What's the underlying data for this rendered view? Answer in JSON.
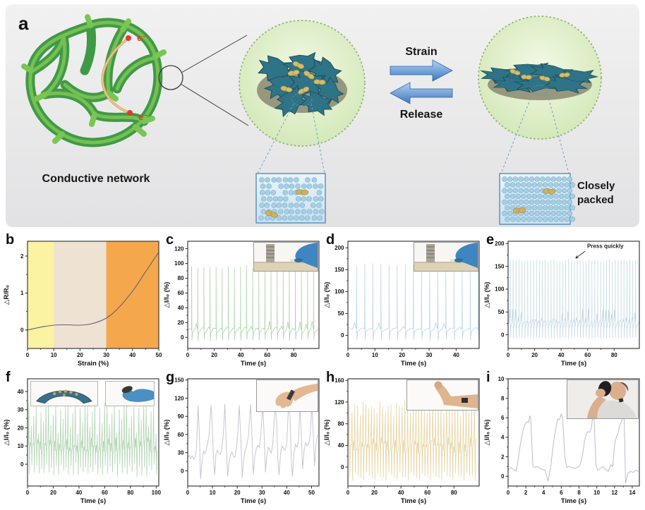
{
  "panel_a": {
    "label": "a",
    "conductive_network_label": "Conductive network",
    "electron_label": "e⁻",
    "strain_label": "Strain",
    "release_label": "Release",
    "closely_packed": [
      "Closely",
      "packed"
    ],
    "colors": {
      "network_green": "#4aa34e",
      "flake_teal": "#2e7386",
      "particle_gold": "#d6bd66",
      "electron_red": "#e23b28",
      "arrow_blue": "#3c79c0",
      "circle_fill": "#e3f1cd",
      "background_gray": "#ececec"
    }
  },
  "chart_data": [
    {
      "id": "b",
      "panel_label": "b",
      "type": "line",
      "xlabel": "Strain (%)",
      "ylabel": "△R/R₀",
      "xlim": [
        0,
        50
      ],
      "ylim": [
        -0.5,
        2.4
      ],
      "xticks": [
        0,
        10,
        20,
        30,
        40,
        50
      ],
      "yticks": [
        0,
        1,
        2
      ],
      "line_color": "#62627a",
      "stroke_width": 1.1,
      "bands": [
        {
          "from": 0,
          "to": 10,
          "color": "#fbf2a2"
        },
        {
          "from": 10,
          "to": 30,
          "color": "#eee2d2"
        },
        {
          "from": 30,
          "to": 50,
          "color": "#f5a74c"
        }
      ],
      "series": [
        {
          "name": "resistance change vs strain",
          "points": [
            [
              0,
              0
            ],
            [
              2,
              0.03
            ],
            [
              4,
              0.06
            ],
            [
              6,
              0.09
            ],
            [
              8,
              0.11
            ],
            [
              10,
              0.13
            ],
            [
              12,
              0.14
            ],
            [
              14,
              0.14
            ],
            [
              16,
              0.14
            ],
            [
              18,
              0.13
            ],
            [
              20,
              0.13
            ],
            [
              22,
              0.14
            ],
            [
              24,
              0.16
            ],
            [
              26,
              0.2
            ],
            [
              28,
              0.25
            ],
            [
              30,
              0.32
            ],
            [
              32,
              0.42
            ],
            [
              34,
              0.55
            ],
            [
              36,
              0.7
            ],
            [
              38,
              0.87
            ],
            [
              40,
              1.05
            ],
            [
              42,
              1.25
            ],
            [
              44,
              1.47
            ],
            [
              46,
              1.68
            ],
            [
              48,
              1.9
            ],
            [
              50,
              2.1
            ]
          ]
        }
      ]
    },
    {
      "id": "c",
      "panel_label": "c",
      "type": "line",
      "xlabel": "Time (s)",
      "ylabel": "△I/I₀ (%)",
      "xlim": [
        0,
        99
      ],
      "ylim": [
        -15,
        130
      ],
      "xticks": [
        0,
        20,
        40,
        60,
        80
      ],
      "yticks": [
        0,
        20,
        40,
        60,
        80,
        100,
        120
      ],
      "line_color": "#abd2ab",
      "stroke_width": 0.8,
      "series": [
        {
          "name": "cyclic finger pressing",
          "pattern": {
            "kind": "spikes",
            "t0": 3.0,
            "period": 4.6,
            "count": 21,
            "peak": 97,
            "base": 12,
            "low": -5,
            "xend": 99,
            "seed": 3
          }
        }
      ],
      "inset": "finger-press-photo"
    },
    {
      "id": "d",
      "panel_label": "d",
      "type": "line",
      "xlabel": "Time (s)",
      "ylabel": "△I/I₀ (%)",
      "xlim": [
        0,
        48.5
      ],
      "ylim": [
        -30,
        215
      ],
      "xticks": [
        0,
        10,
        20,
        30,
        40
      ],
      "yticks": [
        0,
        50,
        100,
        150,
        200
      ],
      "line_color": "#b9d4e6",
      "stroke_width": 0.8,
      "series": [
        {
          "name": "cyclic finger pressing (larger force)",
          "pattern": {
            "kind": "spikes",
            "t0": 3.2,
            "period": 3.0,
            "count": 16,
            "peak": 165,
            "base": 16,
            "low": -12,
            "xend": 48.5,
            "seed": 5
          }
        }
      ],
      "inset": "finger-press-photo"
    },
    {
      "id": "e",
      "panel_label": "e",
      "type": "line",
      "xlabel": "Time (s)",
      "ylabel": "△I/I₀ (%)",
      "xlim": [
        0,
        99
      ],
      "ylim": [
        -30,
        205
      ],
      "xticks": [
        0,
        20,
        40,
        60,
        80
      ],
      "yticks": [
        0,
        50,
        100,
        150,
        200
      ],
      "line_color": "#bfd8e2",
      "stroke_width": 0.8,
      "annotation": {
        "text": "Press quickly",
        "text_at": [
          60,
          190
        ],
        "arrow_from": [
          58,
          183
        ],
        "arrow_to": [
          51,
          168
        ]
      },
      "series": [
        {
          "name": "quick pressing",
          "pattern": {
            "kind": "spikes",
            "t0": 1.6,
            "period": 2.2,
            "count": 44,
            "peak": 166,
            "base": 30,
            "low": -8,
            "xend": 99,
            "seed": 9
          }
        }
      ]
    },
    {
      "id": "f",
      "panel_label": "f",
      "type": "line",
      "xlabel": "Time (s)",
      "ylabel": "△I/I₀ (%)",
      "xlim": [
        0,
        102
      ],
      "ylim": [
        -12,
        47
      ],
      "xticks": [
        0,
        20,
        40,
        60,
        80,
        100
      ],
      "yticks": [
        0,
        10,
        20,
        30,
        40
      ],
      "line_color": "#b2d4b2",
      "stroke_width": 0.8,
      "series": [
        {
          "name": "cyclic bending",
          "pattern": {
            "kind": "osc",
            "t0": 0.6,
            "period": 1.9,
            "count": 53,
            "peaks": [
              34,
              21,
              28,
              33,
              17,
              30,
              24,
              34
            ],
            "mins": [
              -7,
              -3,
              -6,
              -2
            ],
            "mid": 9,
            "seed": 11
          }
        }
      ],
      "inset": "bent-sample-and-glove-photos"
    },
    {
      "id": "g",
      "panel_label": "g",
      "type": "line",
      "xlabel": "Time (s)",
      "ylabel": "△I/I₀ (%)",
      "xlim": [
        0,
        53
      ],
      "ylim": [
        -25,
        152
      ],
      "xticks": [
        0,
        10,
        20,
        30,
        40,
        50
      ],
      "yticks": [
        0,
        30,
        60,
        90,
        120,
        150
      ],
      "line_color": "#c6c6d3",
      "stroke_width": 1.0,
      "series": [
        {
          "name": "wrist bending",
          "points": [
            [
              0,
              22
            ],
            [
              0.6,
              26
            ],
            [
              1.2,
              20
            ],
            [
              1.8,
              25
            ],
            [
              2.4,
              19
            ],
            [
              3,
              23
            ],
            [
              3.5,
              35
            ],
            [
              4.2,
              108
            ],
            [
              4.7,
              60
            ],
            [
              5.2,
              -13
            ],
            [
              5.8,
              15
            ],
            [
              6.3,
              33
            ],
            [
              6.9,
              28
            ],
            [
              7.4,
              33
            ],
            [
              8,
              46
            ],
            [
              8.6,
              57
            ],
            [
              9.4,
              109
            ],
            [
              9.9,
              78
            ],
            [
              10.4,
              18
            ],
            [
              10.9,
              -6
            ],
            [
              11.4,
              28
            ],
            [
              12,
              34
            ],
            [
              12.6,
              29
            ],
            [
              13.2,
              27
            ],
            [
              13.8,
              36
            ],
            [
              14.4,
              62
            ],
            [
              15,
              110
            ],
            [
              15.6,
              42
            ],
            [
              16.1,
              -9
            ],
            [
              16.7,
              14
            ],
            [
              17.3,
              27
            ],
            [
              17.9,
              31
            ],
            [
              18.5,
              24
            ],
            [
              19.1,
              22
            ],
            [
              19.7,
              38
            ],
            [
              20.3,
              66
            ],
            [
              20.8,
              108
            ],
            [
              21.5,
              48
            ],
            [
              22,
              -11
            ],
            [
              22.6,
              19
            ],
            [
              23.2,
              34
            ],
            [
              23.8,
              41
            ],
            [
              24.5,
              58
            ],
            [
              25.4,
              110
            ],
            [
              26,
              52
            ],
            [
              26.5,
              -6
            ],
            [
              27.1,
              24
            ],
            [
              27.7,
              37
            ],
            [
              28.3,
              42
            ],
            [
              28.9,
              39
            ],
            [
              29.5,
              58
            ],
            [
              30.3,
              108
            ],
            [
              30.9,
              58
            ],
            [
              31.4,
              -2
            ],
            [
              32,
              27
            ],
            [
              32.6,
              39
            ],
            [
              33.2,
              34
            ],
            [
              33.8,
              29
            ],
            [
              34.4,
              48
            ],
            [
              35.3,
              107
            ],
            [
              35.9,
              83
            ],
            [
              36.4,
              18
            ],
            [
              36.9,
              -7
            ],
            [
              37.5,
              29
            ],
            [
              38.1,
              41
            ],
            [
              38.7,
              37
            ],
            [
              39.3,
              34
            ],
            [
              40,
              46
            ],
            [
              40.7,
              108
            ],
            [
              41.3,
              88
            ],
            [
              41.8,
              22
            ],
            [
              42.3,
              -9
            ],
            [
              42.9,
              29
            ],
            [
              43.5,
              44
            ],
            [
              44.1,
              39
            ],
            [
              44.7,
              49
            ],
            [
              45.3,
              108
            ],
            [
              45.9,
              57
            ],
            [
              46.4,
              3
            ],
            [
              47,
              34
            ],
            [
              47.6,
              47
            ],
            [
              48.2,
              41
            ],
            [
              48.8,
              44
            ],
            [
              49.4,
              56
            ],
            [
              50.1,
              108
            ],
            [
              50.7,
              62
            ],
            [
              51.2,
              8
            ],
            [
              51.8,
              44
            ],
            [
              52.4,
              60
            ]
          ]
        }
      ],
      "inset": "wrist-bending-photo"
    },
    {
      "id": "h",
      "panel_label": "h",
      "type": "line",
      "xlabel": "Time (s)",
      "ylabel": "△I/I₀ (%)",
      "xlim": [
        0,
        99
      ],
      "ylim": [
        -35,
        163
      ],
      "xticks": [
        0,
        20,
        40,
        60,
        80
      ],
      "yticks": [
        0,
        40,
        80,
        120,
        160
      ],
      "line_color": "#e6d3a0",
      "stroke_width": 0.8,
      "series": [
        {
          "name": "elbow bending",
          "pattern": {
            "kind": "osc",
            "t0": 0.5,
            "period": 2.1,
            "count": 46,
            "peaks": [
              115,
              108,
              120,
              112,
              100,
              118
            ],
            "mins": [
              -20,
              -25,
              -12,
              -18
            ],
            "mid": 34,
            "seed": 17
          }
        }
      ],
      "inset": "elbow-bending-photo"
    },
    {
      "id": "i",
      "panel_label": "i",
      "type": "line",
      "xlabel": "Time (s)",
      "ylabel": "△I/I₀ (%)",
      "xlim": [
        0,
        14.8
      ],
      "ylim": [
        -1,
        10
      ],
      "xticks": [
        0,
        2,
        4,
        6,
        8,
        10,
        12,
        14
      ],
      "yticks": [
        0,
        2,
        4,
        6,
        8,
        10
      ],
      "line_color": "#bcbcca",
      "stroke_width": 1.0,
      "series": [
        {
          "name": "swallowing while drinking",
          "points": [
            [
              0,
              0.6
            ],
            [
              0.3,
              0.9
            ],
            [
              0.6,
              0.7
            ],
            [
              0.9,
              0.5
            ],
            [
              1.1,
              1.5
            ],
            [
              1.3,
              2.8
            ],
            [
              1.5,
              3.9
            ],
            [
              1.7,
              4.8
            ],
            [
              1.9,
              5.3
            ],
            [
              2.1,
              5.6
            ],
            [
              2.3,
              5.5
            ],
            [
              2.45,
              6.2
            ],
            [
              2.55,
              5.9
            ],
            [
              2.8,
              1
            ],
            [
              3,
              0.9
            ],
            [
              3.3,
              1
            ],
            [
              3.6,
              0.8
            ],
            [
              3.9,
              0.7
            ],
            [
              4.2,
              0.6
            ],
            [
              4.5,
              -0.5
            ],
            [
              4.8,
              0.9
            ],
            [
              5,
              2.5
            ],
            [
              5.2,
              4
            ],
            [
              5.4,
              5
            ],
            [
              5.6,
              5.9
            ],
            [
              5.8,
              5.8
            ],
            [
              6,
              6.4
            ],
            [
              6.15,
              6
            ],
            [
              6.4,
              2
            ],
            [
              6.6,
              0.9
            ],
            [
              6.9,
              1
            ],
            [
              7.2,
              0.9
            ],
            [
              7.5,
              0.8
            ],
            [
              7.8,
              0.9
            ],
            [
              8.1,
              1.1
            ],
            [
              8.4,
              2.2
            ],
            [
              8.6,
              3.5
            ],
            [
              8.8,
              4.3
            ],
            [
              9,
              4.6
            ],
            [
              9.2,
              4.5
            ],
            [
              9.4,
              5
            ],
            [
              9.55,
              6.1
            ],
            [
              9.7,
              5.8
            ],
            [
              9.9,
              1.2
            ],
            [
              10.1,
              0.6
            ],
            [
              10.4,
              0.8
            ],
            [
              10.7,
              1
            ],
            [
              11,
              0.7
            ],
            [
              11.3,
              0.5
            ],
            [
              11.6,
              1.2
            ],
            [
              11.8,
              1
            ],
            [
              12,
              3.2
            ],
            [
              12.2,
              4
            ],
            [
              12.4,
              4.4
            ],
            [
              12.6,
              5.3
            ],
            [
              12.8,
              5.6
            ],
            [
              12.95,
              6.3
            ],
            [
              13.1,
              5.8
            ],
            [
              13.25,
              -0.7
            ],
            [
              13.5,
              0.3
            ],
            [
              13.8,
              0.5
            ],
            [
              14.1,
              0.4
            ],
            [
              14.4,
              0.6
            ],
            [
              14.7,
              0.5
            ]
          ]
        }
      ],
      "inset": "drinking-photo"
    }
  ]
}
